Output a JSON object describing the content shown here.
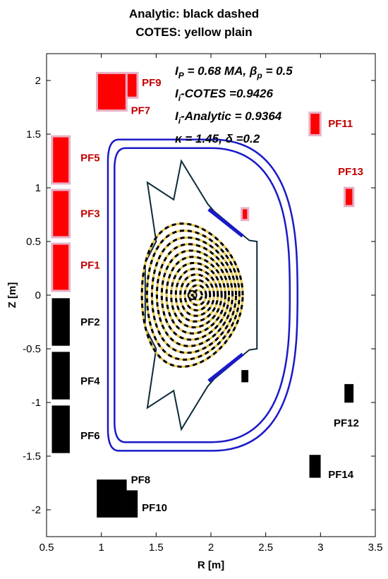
{
  "chart_data": {
    "type": "scatter",
    "title": [
      "Analytic: black dashed",
      "COTES: yellow plain"
    ],
    "xlabel": "R [m]",
    "ylabel": "Z [m]",
    "xlim": [
      0.5,
      3.5
    ],
    "ylim": [
      -2.25,
      2.25
    ],
    "xticks": [
      0.5,
      1,
      1.5,
      2,
      2.5,
      3,
      3.5
    ],
    "xtick_labels": [
      "0.5",
      "1",
      "1.5",
      "2",
      "2.5",
      "3",
      "3.5"
    ],
    "yticks": [
      2,
      1.5,
      1,
      0.5,
      0,
      -0.5,
      -1,
      -1.5,
      -2
    ],
    "ytick_labels": [
      "2",
      "1.5",
      "1",
      "0.5",
      "0",
      "-0.5",
      "-1",
      "-1.5",
      "-2"
    ],
    "grid": false,
    "annotations": [
      {
        "main": "I",
        "sub": "P",
        "rest": " = 0.68 MA, β",
        "sub2": "p",
        "rest2": " = 0.5"
      },
      {
        "main": "I",
        "sub": "i",
        "rest": "-COTES   =0.9426",
        "sub2": "",
        "rest2": ""
      },
      {
        "main": "I",
        "sub": "i",
        "rest": "-Analytic = 0.9364",
        "sub2": "",
        "rest2": ""
      },
      {
        "main": "κ",
        "sub": "",
        "rest": " = 1.45, δ =0.2",
        "sub2": "",
        "rest2": ""
      }
    ],
    "coils": [
      {
        "name": "PF1",
        "color": "#ff0000",
        "r0": 0.55,
        "r1": 0.71,
        "z0": 0.04,
        "z1": 0.48,
        "label_r": 0.81,
        "label_z": 0.28,
        "label_color": "#c00000"
      },
      {
        "name": "PF3",
        "color": "#ff0000",
        "r0": 0.55,
        "r1": 0.71,
        "z0": 0.54,
        "z1": 0.98,
        "label_r": 0.81,
        "label_z": 0.76,
        "label_color": "#c00000"
      },
      {
        "name": "PF5",
        "color": "#ff0000",
        "r0": 0.55,
        "r1": 0.71,
        "z0": 1.04,
        "z1": 1.48,
        "label_r": 0.81,
        "label_z": 1.28,
        "label_color": "#c00000"
      },
      {
        "name": "PF7",
        "color": "#ff0000",
        "r0": 0.96,
        "r1": 1.23,
        "z0": 1.72,
        "z1": 2.07,
        "label_r": 1.27,
        "label_z": 1.72,
        "label_color": "#c00000"
      },
      {
        "name": "PF9",
        "color": "#ff0000",
        "r0": 1.23,
        "r1": 1.33,
        "z0": 1.84,
        "z1": 2.07,
        "label_r": 1.37,
        "label_z": 1.98,
        "label_color": "#c00000"
      },
      {
        "name": "PF11",
        "color": "#ff0000",
        "r0": 2.9,
        "r1": 3.0,
        "z0": 1.49,
        "z1": 1.7,
        "label_r": 3.07,
        "label_z": 1.6,
        "label_color": "#c00000"
      },
      {
        "name": "PF13",
        "color": "#ff0000",
        "r0": 3.22,
        "r1": 3.3,
        "z0": 0.83,
        "z1": 1.0,
        "label_r": 3.16,
        "label_z": 1.15,
        "label_color": "#c00000"
      },
      {
        "name": "PF2",
        "color": "#000000",
        "r0": 0.55,
        "r1": 0.71,
        "z0": -0.47,
        "z1": -0.03,
        "label_r": 0.81,
        "label_z": -0.25,
        "label_color": "#000000"
      },
      {
        "name": "PF4",
        "color": "#000000",
        "r0": 0.55,
        "r1": 0.71,
        "z0": -0.97,
        "z1": -0.53,
        "label_r": 0.81,
        "label_z": -0.8,
        "label_color": "#000000"
      },
      {
        "name": "PF6",
        "color": "#000000",
        "r0": 0.55,
        "r1": 0.71,
        "z0": -1.47,
        "z1": -1.03,
        "label_r": 0.81,
        "label_z": -1.31,
        "label_color": "#000000"
      },
      {
        "name": "PF8",
        "color": "#000000",
        "r0": 0.96,
        "r1": 1.23,
        "z0": -2.07,
        "z1": -1.72,
        "label_r": 1.27,
        "label_z": -1.72,
        "label_color": "#000000"
      },
      {
        "name": "PF10",
        "color": "#000000",
        "r0": 1.23,
        "r1": 1.33,
        "z0": -2.07,
        "z1": -1.82,
        "label_r": 1.37,
        "label_z": -1.98,
        "label_color": "#000000"
      },
      {
        "name": "PF12",
        "color": "#000000",
        "r0": 3.22,
        "r1": 3.3,
        "z0": -1.0,
        "z1": -0.83,
        "label_r": 3.12,
        "label_z": -1.19,
        "label_color": "#000000"
      },
      {
        "name": "PF14",
        "color": "#000000",
        "r0": 2.9,
        "r1": 3.0,
        "z0": -1.7,
        "z1": -1.49,
        "label_r": 3.07,
        "label_z": -1.67,
        "label_color": "#000000"
      },
      {
        "name": "",
        "color": "#ff0000",
        "r0": 2.28,
        "r1": 2.34,
        "z0": 0.7,
        "z1": 0.81,
        "label_r": 0,
        "label_z": 0,
        "label_color": "#000000"
      },
      {
        "name": "",
        "color": "#000000",
        "r0": 2.28,
        "r1": 2.34,
        "z0": -0.81,
        "z1": -0.7,
        "label_r": 0,
        "label_z": 0,
        "label_color": "#000000"
      }
    ],
    "vacuum_vessel": {
      "color": "#1a1ac8",
      "inner_left_r": 1.12,
      "inner_top_z": 1.37,
      "inner_outer_r": 2.72,
      "outer_left_r": 1.06,
      "outer_top_z": 1.45,
      "outer_outer_r": 2.79
    },
    "first_wall": {
      "color": "#0d2b3a",
      "points": [
        [
          1.42,
          1.05
        ],
        [
          1.66,
          0.89
        ],
        [
          1.73,
          1.25
        ],
        [
          1.97,
          0.85
        ],
        [
          2.03,
          0.78
        ],
        [
          2.35,
          0.51
        ],
        [
          2.42,
          0.5
        ],
        [
          2.42,
          -0.5
        ],
        [
          2.35,
          -0.51
        ],
        [
          2.03,
          -0.78
        ],
        [
          1.97,
          -0.85
        ],
        [
          1.73,
          -1.25
        ],
        [
          1.66,
          -0.89
        ],
        [
          1.42,
          -1.05
        ],
        [
          1.5,
          -0.5
        ],
        [
          1.4,
          -0.3
        ],
        [
          1.4,
          0.3
        ],
        [
          1.5,
          0.5
        ]
      ]
    },
    "passive_plates": [
      {
        "color": "#1a1ac8",
        "r": [
          1.98,
          2.29
        ],
        "z": [
          0.8,
          0.55
        ]
      },
      {
        "color": "#1a1ac8",
        "r": [
          1.98,
          2.29
        ],
        "z": [
          -0.8,
          -0.55
        ]
      }
    ],
    "plasma": {
      "center_r": 1.83,
      "center_z": 0.0,
      "minor_radius": 0.46,
      "kappa": 1.45,
      "delta": 0.2,
      "n_surfaces": 12,
      "shafranov_shift": 0.05,
      "analytic_color": "#000000",
      "cotes_color": "#e8c84a"
    }
  }
}
